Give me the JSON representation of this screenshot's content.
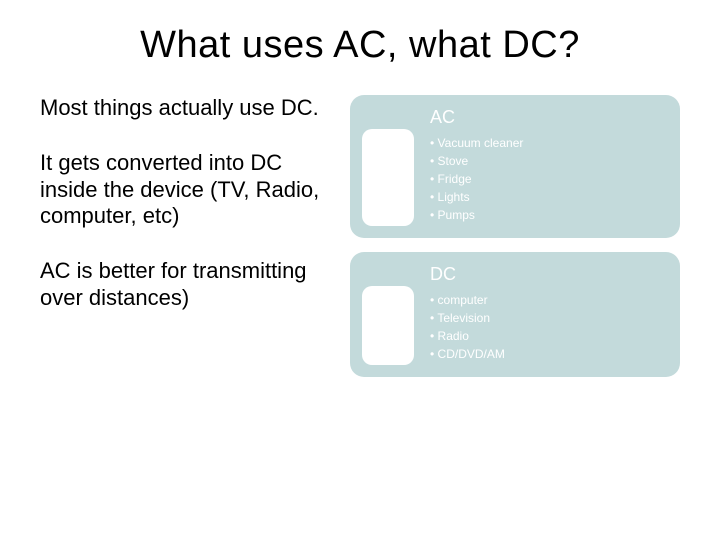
{
  "title": "What uses AC, what DC?",
  "left_paragraphs": [
    "Most things actually use DC.",
    "It gets converted into DC inside the device (TV, Radio, computer, etc)",
    "AC is better for transmitting over distances)"
  ],
  "cards": [
    {
      "heading": "AC",
      "bg_color": "#c3dadb",
      "items": [
        "Vacuum cleaner",
        "Stove",
        "Fridge",
        "Lights",
        "Pumps"
      ]
    },
    {
      "heading": "DC",
      "bg_color": "#c3dadb",
      "items": [
        "computer",
        "Television",
        "Radio",
        "CD/DVD/AM"
      ]
    }
  ]
}
